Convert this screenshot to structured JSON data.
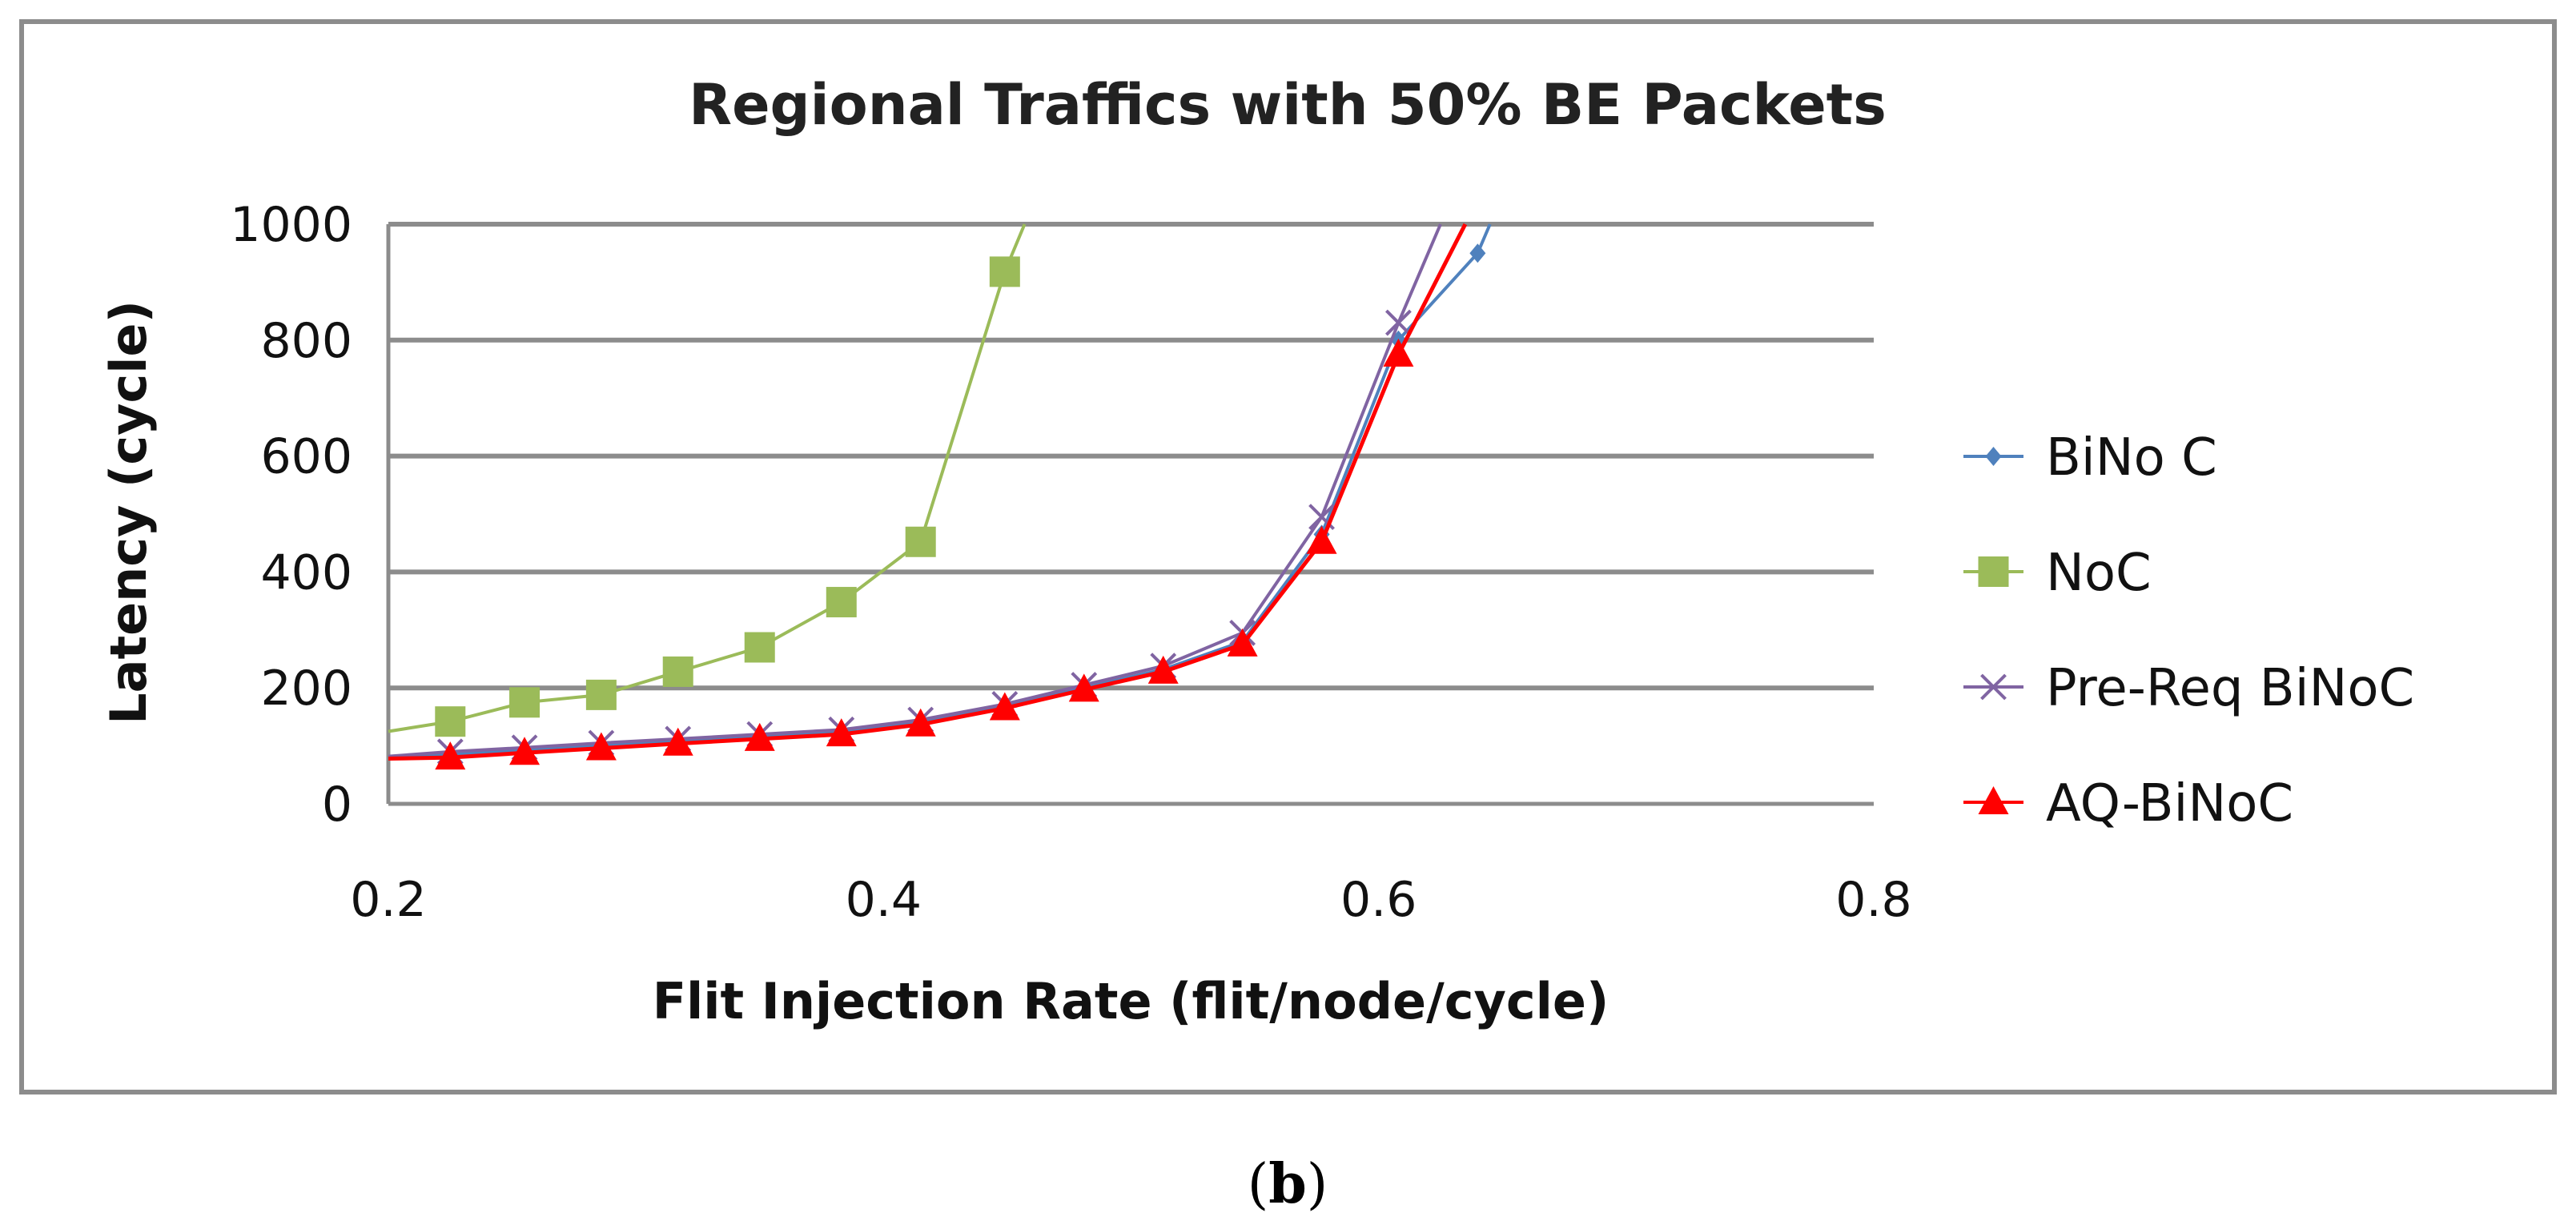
{
  "caption": {
    "open": "(",
    "letter": "b",
    "close": ")"
  },
  "chart_data": {
    "type": "line",
    "title": "Regional Traffics with 50% BE Packets",
    "xlabel": "Flit Injection Rate (flit/node/cycle)",
    "ylabel": "Latency (cycle)",
    "xlim": [
      0.2,
      0.8
    ],
    "ylim": [
      0,
      1000
    ],
    "xticks": [
      0.2,
      0.4,
      0.6,
      0.8
    ],
    "xtick_labels": [
      "0.2",
      "0.4",
      "0.6",
      "0.8"
    ],
    "yticks": [
      0,
      200,
      400,
      600,
      800,
      1000
    ],
    "ytick_labels": [
      "0",
      "200",
      "400",
      "600",
      "800",
      "1000"
    ],
    "grid": "horizontal",
    "legend_position": "right",
    "series": [
      {
        "name": "BiNo C",
        "color": "#4f81bd",
        "marker": "diamond",
        "x": [
          0.2,
          0.225,
          0.255,
          0.286,
          0.317,
          0.35,
          0.383,
          0.415,
          0.449,
          0.481,
          0.513,
          0.545,
          0.577,
          0.608,
          0.64,
          0.645
        ],
        "y": [
          80,
          85,
          92,
          100,
          108,
          115,
          123,
          140,
          168,
          200,
          232,
          280,
          465,
          800,
          950,
          1000
        ]
      },
      {
        "name": "NoC",
        "color": "#9bbb59",
        "marker": "square",
        "x": [
          0.2,
          0.225,
          0.255,
          0.286,
          0.317,
          0.35,
          0.383,
          0.415,
          0.449,
          0.457
        ],
        "y": [
          125,
          142,
          175,
          188,
          228,
          270,
          348,
          452,
          918,
          1000
        ]
      },
      {
        "name": "Pre-Req BiNoC",
        "color": "#8064a2",
        "marker": "x",
        "x": [
          0.2,
          0.225,
          0.255,
          0.286,
          0.317,
          0.35,
          0.383,
          0.415,
          0.449,
          0.481,
          0.513,
          0.545,
          0.577,
          0.608,
          0.625
        ],
        "y": [
          82,
          90,
          97,
          105,
          112,
          120,
          128,
          145,
          172,
          205,
          238,
          295,
          495,
          830,
          1000
        ]
      },
      {
        "name": "AQ-BiNoC",
        "color": "#ff0000",
        "marker": "triangle",
        "x": [
          0.2,
          0.225,
          0.255,
          0.286,
          0.317,
          0.35,
          0.383,
          0.415,
          0.449,
          0.481,
          0.513,
          0.545,
          0.577,
          0.608,
          0.635
        ],
        "y": [
          78,
          80,
          88,
          96,
          104,
          112,
          120,
          137,
          165,
          197,
          228,
          275,
          452,
          775,
          1000
        ]
      }
    ]
  }
}
